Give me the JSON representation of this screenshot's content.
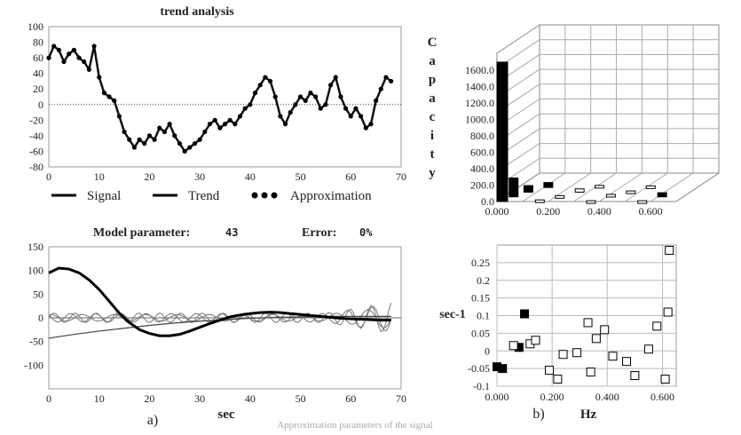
{
  "chart_data": [
    {
      "type": "line",
      "title": "trend analysis",
      "x_ticks": [
        0,
        10,
        20,
        30,
        40,
        50,
        60,
        70
      ],
      "y_ticks": [
        100,
        80,
        60,
        40,
        20,
        0,
        -20,
        -40,
        -60,
        -80
      ],
      "xlim": [
        0,
        70
      ],
      "ylim": [
        -80,
        100
      ],
      "legend": [
        "Signal",
        "Trend",
        "Approximation"
      ],
      "legend_placement": "bottom",
      "series": [
        {
          "name": "Signal",
          "x": [
            0,
            1,
            2,
            3,
            4,
            5,
            6,
            7,
            8,
            9,
            10,
            11,
            12,
            13,
            14,
            15,
            16,
            17,
            18,
            19,
            20,
            21,
            22,
            23,
            24,
            25,
            26,
            27,
            28,
            29,
            30,
            31,
            32,
            33,
            34,
            35,
            36,
            37,
            38,
            39,
            40,
            41,
            42,
            43,
            44,
            45,
            46,
            47,
            48,
            49,
            50,
            51,
            52,
            53,
            54,
            55,
            56,
            57,
            58,
            59,
            60,
            61,
            62,
            63,
            64,
            65,
            66,
            67,
            68
          ],
          "y": [
            60,
            75,
            70,
            55,
            65,
            70,
            60,
            55,
            45,
            75,
            35,
            15,
            10,
            5,
            -15,
            -35,
            -45,
            -55,
            -45,
            -50,
            -40,
            -45,
            -30,
            -35,
            -25,
            -40,
            -50,
            -60,
            -55,
            -50,
            -45,
            -35,
            -25,
            -20,
            -30,
            -25,
            -20,
            -25,
            -15,
            -5,
            0,
            15,
            25,
            35,
            30,
            10,
            -15,
            -25,
            -10,
            0,
            10,
            5,
            15,
            10,
            -5,
            0,
            25,
            35,
            10,
            -5,
            -15,
            -5,
            -15,
            -30,
            -25,
            5,
            20,
            35,
            30
          ]
        }
      ]
    },
    {
      "type": "bar",
      "subtype": "3d",
      "ylabel": "Capacity",
      "y_ticks": [
        1600.0,
        1400.0,
        1200.0,
        1000.0,
        800.0,
        600.0,
        400.0,
        200.0,
        0.0
      ],
      "x_ticks": [
        0.0,
        0.2,
        0.4,
        0.6
      ],
      "ylim": [
        0,
        1700
      ],
      "x": [
        0.0,
        0.02,
        0.05,
        0.1,
        0.15,
        0.2,
        0.25,
        0.3,
        0.35,
        0.4,
        0.45,
        0.5,
        0.55,
        0.6
      ],
      "values": [
        1700,
        230,
        80,
        60,
        20,
        15,
        40,
        25,
        10,
        30,
        15,
        20,
        10,
        50
      ]
    },
    {
      "type": "line",
      "title": "Model parameter:",
      "model_parameter": "43",
      "error_label": "Error:",
      "error_value": "0%",
      "xlabel": "sec",
      "panel_label": "a)",
      "x_ticks": [
        0,
        10,
        20,
        30,
        40,
        50,
        60,
        70
      ],
      "y_ticks": [
        150,
        100,
        50,
        0,
        -50,
        -100
      ],
      "xlim": [
        0,
        70
      ],
      "ylim": [
        -150,
        150
      ],
      "series": [
        {
          "x": [
            0,
            2,
            4,
            6,
            8,
            10,
            12,
            14,
            16,
            18,
            20,
            22,
            24,
            26,
            28,
            30,
            32,
            34,
            36,
            38,
            40,
            42,
            44,
            46,
            48,
            50,
            52,
            54,
            56,
            58,
            60,
            62,
            64,
            66,
            68
          ],
          "y": [
            95,
            105,
            103,
            95,
            80,
            60,
            35,
            10,
            -10,
            -25,
            -33,
            -38,
            -38,
            -35,
            -28,
            -20,
            -12,
            -5,
            2,
            6,
            9,
            11,
            12,
            11,
            9,
            7,
            5,
            3,
            1,
            -1,
            -2,
            -3,
            -4,
            -5,
            -5
          ]
        },
        {
          "x": [
            0,
            5,
            10,
            15,
            20,
            25,
            30,
            35,
            40,
            45,
            50,
            55,
            60,
            65,
            68
          ],
          "y": [
            -43,
            -35,
            -28,
            -22,
            -16,
            -11,
            -7,
            -4,
            -1,
            1,
            2,
            3,
            3,
            3,
            3
          ]
        }
      ]
    },
    {
      "type": "scatter",
      "ylabel": "sec-1",
      "xlabel": "Hz",
      "panel_label": "b)",
      "x_ticks": [
        0.0,
        0.2,
        0.4,
        0.6
      ],
      "y_ticks": [
        0.25,
        0.2,
        0.15,
        0.1,
        0.05,
        0,
        -0.05,
        -0.1
      ],
      "xlim": [
        0,
        0.65
      ],
      "ylim": [
        -0.1,
        0.3
      ],
      "series": [
        {
          "marker": "filled",
          "x": [
            0.0,
            0.02,
            0.08,
            0.1
          ],
          "y": [
            -0.045,
            -0.05,
            0.01,
            0.105
          ]
        },
        {
          "marker": "open",
          "x": [
            0.06,
            0.12,
            0.14,
            0.19,
            0.22,
            0.24,
            0.29,
            0.33,
            0.34,
            0.36,
            0.39,
            0.42,
            0.47,
            0.5,
            0.55,
            0.58,
            0.61,
            0.62,
            0.625
          ],
          "y": [
            0.015,
            0.02,
            0.03,
            -0.055,
            -0.08,
            -0.01,
            -0.005,
            0.08,
            -0.06,
            0.035,
            0.06,
            -0.015,
            -0.03,
            -0.07,
            0.005,
            0.07,
            -0.08,
            0.11,
            0.285
          ]
        }
      ]
    }
  ],
  "footer": {
    "caption": "Approximation parameters of the signal"
  }
}
